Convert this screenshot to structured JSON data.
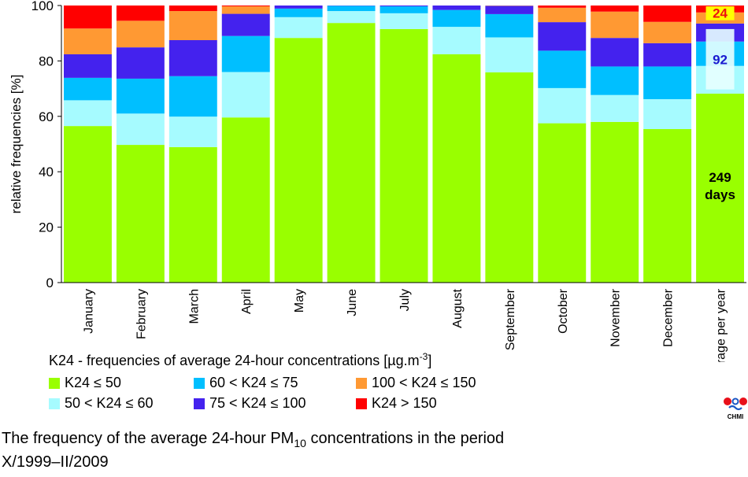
{
  "chart_data": {
    "type": "bar",
    "stacked": true,
    "ylabel": "relative frequencies [%]",
    "ylim": [
      0,
      100
    ],
    "yticks": [
      0,
      20,
      40,
      60,
      80,
      100
    ],
    "categories": [
      "January",
      "February",
      "March",
      "April",
      "May",
      "June",
      "July",
      "August",
      "September",
      "October",
      "November",
      "December",
      "average per year"
    ],
    "series": [
      {
        "name": "K24 ≤ 50",
        "color": "#99ff00",
        "values": [
          56.5,
          49.7,
          48.9,
          59.6,
          88.3,
          93.7,
          91.5,
          82.4,
          75.9,
          57.5,
          58.0,
          55.4,
          68.2
        ]
      },
      {
        "name": "50 < K24 ≤ 60",
        "color": "#a6fbff",
        "values": [
          9.3,
          11.3,
          11.0,
          16.4,
          7.5,
          4.3,
          5.7,
          9.9,
          12.6,
          12.7,
          9.7,
          10.8,
          10.0
        ]
      },
      {
        "name": "60 < K24 ≤ 75",
        "color": "#00bfff",
        "values": [
          8.1,
          12.6,
          14.6,
          13.0,
          3.1,
          1.9,
          2.5,
          6.1,
          8.4,
          13.5,
          10.3,
          11.8,
          8.8
        ]
      },
      {
        "name": "75 < K24 ≤ 100",
        "color": "#4422ee",
        "values": [
          8.5,
          11.3,
          13.0,
          8.0,
          1.1,
          0.1,
          0.3,
          1.6,
          3.0,
          10.3,
          10.3,
          8.4,
          6.5
        ]
      },
      {
        "name": "100 < K24 ≤ 150",
        "color": "#ff9933",
        "values": [
          9.3,
          9.6,
          10.5,
          2.7,
          0.0,
          0.0,
          0.0,
          0.0,
          0.1,
          5.2,
          9.5,
          7.7,
          4.0
        ]
      },
      {
        "name": "K24 > 150",
        "color": "#ff0000",
        "values": [
          8.3,
          5.5,
          2.0,
          0.3,
          0.0,
          0.0,
          0.0,
          0.0,
          0.0,
          0.8,
          2.2,
          5.9,
          2.5
        ]
      }
    ],
    "annotations": [
      {
        "text": "249",
        "text2": "days",
        "category": "average per year"
      },
      {
        "text": "92",
        "category": "average per year"
      },
      {
        "text": "24",
        "category": "average per year"
      }
    ],
    "legend": {
      "title": "K24 - frequencies of average 24-hour concentrations [µg.m",
      "title_sup": "-3",
      "title_end": "]",
      "placement": "bottom"
    },
    "grid": false
  },
  "caption": {
    "part1": "The frequency of the average 24-hour PM",
    "sub": "10",
    "part2": " concentrations in the period",
    "line2": "X/1999–II/2009"
  },
  "logo": {
    "text": "CHMI"
  }
}
